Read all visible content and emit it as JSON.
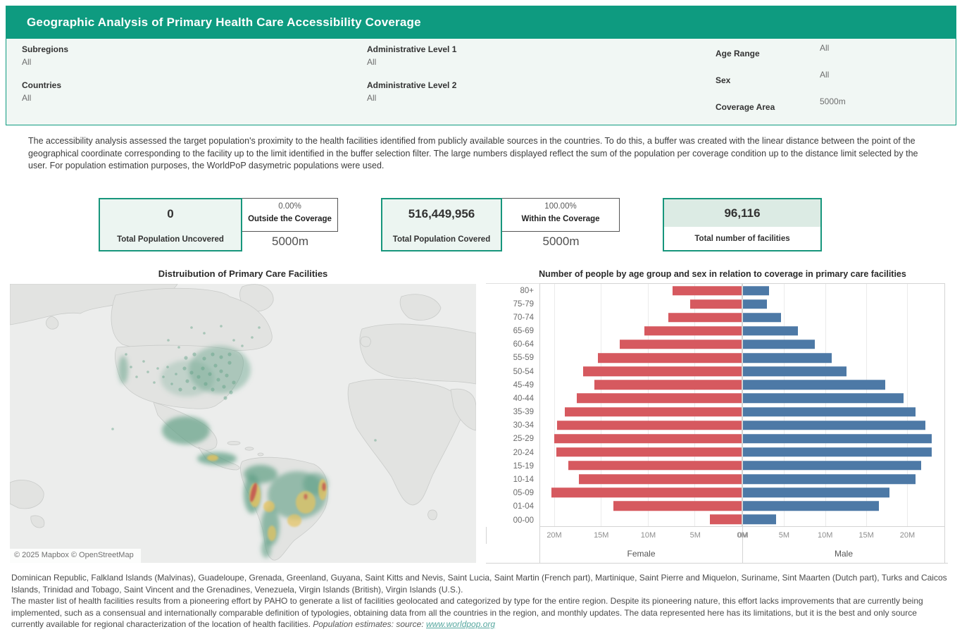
{
  "header": {
    "title": "Geographic Analysis of Primary Health Care Accessibility Coverage"
  },
  "filters": {
    "subregions": {
      "label": "Subregions",
      "value": "All"
    },
    "countries": {
      "label": "Countries",
      "value": "All"
    },
    "admin1": {
      "label": "Administrative Level 1",
      "value": "All"
    },
    "admin2": {
      "label": "Administrative Level 2",
      "value": "All"
    },
    "age_range": {
      "label": "Age Range",
      "value": "All"
    },
    "sex": {
      "label": "Sex",
      "value": "All"
    },
    "coverage_area": {
      "label": "Coverage Area",
      "value": "5000m"
    }
  },
  "description": "The accessibility analysis assessed the target population's proximity to the health facilities identified from publicly available sources in the countries. To do this, a buffer was created with the linear distance between the point of the geographical coordinate corresponding to the facility up to the limit identified in the buffer selection filter. The large numbers displayed reflect the sum of the population per coverage condition up to the distance limit selected by the user. For population estimation purposes, the WorldPoP dasymetric populations were used.",
  "kpis": {
    "uncovered": {
      "value": "0",
      "label": "Total Population Uncovered",
      "percent": "0.00%",
      "percent_label": "Outside the Coverage",
      "distance": "5000m"
    },
    "covered": {
      "value": "516,449,956",
      "label": "Total Population Covered",
      "percent": "100.00%",
      "percent_label": "Within the Coverage",
      "distance": "5000m"
    },
    "facilities": {
      "value": "96,116",
      "label": "Total number of facilities"
    }
  },
  "map": {
    "title": "Distruibution of Primary Care Facilities",
    "attribution": "© 2025 Mapbox © OpenStreetMap"
  },
  "chart_data": {
    "type": "bar",
    "title": "Number of people by age group and sex in relation to coverage in primary care facilities",
    "categories": [
      "80+",
      "75-79",
      "70-74",
      "65-69",
      "60-64",
      "55-59",
      "50-54",
      "45-49",
      "40-44",
      "35-39",
      "30-34",
      "25-29",
      "20-24",
      "15-19",
      "10-14",
      "05-09",
      "01-04",
      "00-00"
    ],
    "series": [
      {
        "name": "Female",
        "color": "#d6595f",
        "values": [
          7.4,
          5.5,
          7.8,
          10.4,
          13.0,
          15.3,
          16.9,
          15.7,
          17.6,
          18.9,
          19.7,
          20.0,
          19.8,
          18.5,
          17.4,
          20.3,
          13.7,
          3.4
        ]
      },
      {
        "name": "Male",
        "color": "#4d79a6",
        "values": [
          3.2,
          2.9,
          4.6,
          6.7,
          8.7,
          10.8,
          12.6,
          17.3,
          19.5,
          21.0,
          22.2,
          23.0,
          23.0,
          21.7,
          21.0,
          17.8,
          16.5,
          4.0
        ]
      }
    ],
    "unit": "millions of people",
    "tick_values": [
      20,
      15,
      10,
      5,
      0
    ],
    "x_ticks": [
      "20M",
      "15M",
      "10M",
      "5M",
      "0M"
    ],
    "axis_max_female": 21.5,
    "axis_max_male": 24.5,
    "xlabel_female": "Female",
    "xlabel_male": "Male",
    "grid": true,
    "legend_position": "none"
  },
  "footer": {
    "countries_list": "Dominican Republic, Falkland Islands (Malvinas), Guadeloupe, Grenada, Greenland, Guyana, Saint Kitts and Nevis, Saint Lucia, Saint Martin (French part), Martinique, Saint Pierre and Miquelon, Suriname, Sint Maarten (Dutch part), Turks and Caicos Islands, Trinidad and Tobago, Saint Vincent and the Grenadines, Venezuela, Virgin Islands (British), Virgin Islands (U.S.).",
    "paragraph": "The master list of health facilities results from a pioneering effort by PAHO to generate a list of facilities geolocated and categorized by type for the entire region. Despite its pioneering nature, this effort lacks improvements that are currently being implemented, such as a consensual and internationally comparable definition of typologies, obtaining data from all the countries in the region, and monthly updates. The data represented here has its limitations, but it is the best and only source currently available for regional characterization of the location of health facilities.",
    "estimates_label": "Population estimates:  source:",
    "link": "www.worldpop.org"
  },
  "colors": {
    "accent": "#0e9b80",
    "female": "#d6595f",
    "male": "#4d79a6",
    "kpi_bg": "#ecf5f1"
  }
}
